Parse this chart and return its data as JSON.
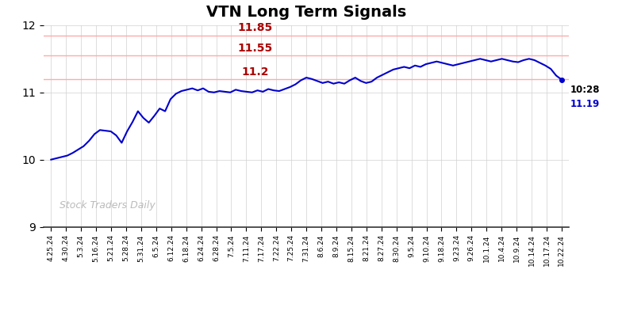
{
  "title": "VTN Long Term Signals",
  "title_fontsize": 14,
  "line_color": "#0000CC",
  "line_width": 1.5,
  "background_color": "#ffffff",
  "grid_color": "#d0d0d0",
  "ylim": [
    9,
    12
  ],
  "yticks": [
    9,
    10,
    11,
    12
  ],
  "hlines": [
    {
      "y": 11.85,
      "color": "#ffaaaa",
      "label": "11.85",
      "label_color": "#aa0000"
    },
    {
      "y": 11.55,
      "color": "#ffaaaa",
      "label": "11.55",
      "label_color": "#aa0000"
    },
    {
      "y": 11.2,
      "color": "#ffaaaa",
      "label": "11.2",
      "label_color": "#aa0000"
    }
  ],
  "watermark": "Stock Traders Daily",
  "watermark_color": "#bbbbbb",
  "annotation_time": "10:28",
  "annotation_price": "11.19",
  "annotation_price_color": "#0000CC",
  "x_labels": [
    "4.25.24",
    "4.30.24",
    "5.3.24",
    "5.16.24",
    "5.21.24",
    "5.28.24",
    "5.31.24",
    "6.5.24",
    "6.12.24",
    "6.18.24",
    "6.24.24",
    "6.28.24",
    "7.5.24",
    "7.11.24",
    "7.17.24",
    "7.22.24",
    "7.25.24",
    "7.31.24",
    "8.6.24",
    "8.9.24",
    "8.15.24",
    "8.21.24",
    "8.27.24",
    "8.30.24",
    "9.5.24",
    "9.10.24",
    "9.18.24",
    "9.23.24",
    "9.26.24",
    "10.1.24",
    "10.4.24",
    "10.9.24",
    "10.14.24",
    "10.17.24",
    "10.22.24"
  ],
  "y_values": [
    10.0,
    10.02,
    10.04,
    10.06,
    10.1,
    10.15,
    10.2,
    10.28,
    10.38,
    10.44,
    10.43,
    10.42,
    10.36,
    10.25,
    10.42,
    10.56,
    10.72,
    10.62,
    10.55,
    10.65,
    10.76,
    10.72,
    10.9,
    10.98,
    11.02,
    11.04,
    11.06,
    11.03,
    11.06,
    11.01,
    11.0,
    11.02,
    11.01,
    11.0,
    11.04,
    11.02,
    11.01,
    11.0,
    11.03,
    11.01,
    11.05,
    11.03,
    11.02,
    11.05,
    11.08,
    11.12,
    11.18,
    11.22,
    11.2,
    11.17,
    11.14,
    11.16,
    11.13,
    11.15,
    11.13,
    11.18,
    11.22,
    11.17,
    11.14,
    11.16,
    11.22,
    11.26,
    11.3,
    11.34,
    11.36,
    11.38,
    11.36,
    11.4,
    11.38,
    11.42,
    11.44,
    11.46,
    11.44,
    11.42,
    11.4,
    11.42,
    11.44,
    11.46,
    11.48,
    11.5,
    11.48,
    11.46,
    11.48,
    11.5,
    11.48,
    11.46,
    11.45,
    11.48,
    11.5,
    11.48,
    11.44,
    11.4,
    11.35,
    11.25,
    11.19
  ]
}
